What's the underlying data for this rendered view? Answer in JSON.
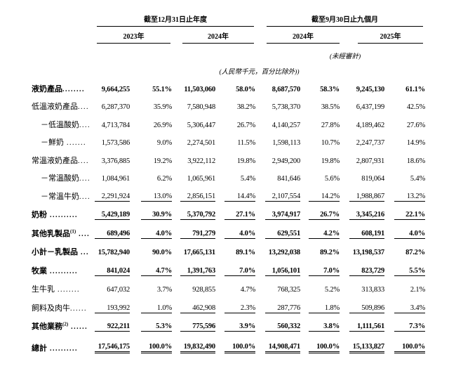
{
  "header": {
    "group1": {
      "title": "截至12月31日止年度",
      "years": [
        "2023年",
        "2024年"
      ]
    },
    "group2": {
      "title": "截至9月30日止九個月",
      "years": [
        "2024年",
        "2025年"
      ],
      "unaudited_note": "(未經審計)"
    },
    "unit_note": "(人民幣千元，百分比除外))"
  },
  "rows": [
    {
      "label": "液奶產品",
      "sup": "",
      "dots": "........",
      "indent": 0,
      "bold": true,
      "underline": "none",
      "values": [
        "9,664,255",
        "55.1%",
        "11,503,060",
        "58.0%",
        "8,687,570",
        "58.3%",
        "9,245,130",
        "61.1%"
      ]
    },
    {
      "label": "低溫液奶產品",
      "sup": "",
      "dots": "....",
      "indent": 0,
      "bold": false,
      "underline": "none",
      "values": [
        "6,287,370",
        "35.9%",
        "7,580,948",
        "38.2%",
        "5,738,370",
        "38.5%",
        "6,437,199",
        "42.5%"
      ]
    },
    {
      "label": "－低溫酸奶",
      "sup": "",
      "dots": "....",
      "indent": 1,
      "bold": false,
      "underline": "none",
      "values": [
        "4,713,784",
        "26.9%",
        "5,306,447",
        "26.7%",
        "4,140,257",
        "27.8%",
        "4,189,462",
        "27.6%"
      ]
    },
    {
      "label": "－鮮奶",
      "sup": "",
      "dots": " .......",
      "indent": 1,
      "bold": false,
      "underline": "none",
      "values": [
        "1,573,586",
        "9.0%",
        "2,274,501",
        "11.5%",
        "1,598,113",
        "10.7%",
        "2,247,737",
        "14.9%"
      ]
    },
    {
      "label": "常溫液奶產品",
      "sup": "",
      "dots": "....",
      "indent": 0,
      "bold": false,
      "underline": "none",
      "values": [
        "3,376,885",
        "19.2%",
        "3,922,112",
        "19.8%",
        "2,949,200",
        "19.8%",
        "2,807,931",
        "18.6%"
      ]
    },
    {
      "label": "－常溫酸奶",
      "sup": "",
      "dots": "....",
      "indent": 1,
      "bold": false,
      "underline": "none",
      "values": [
        "1,084,961",
        "6.2%",
        "1,065,961",
        "5.4%",
        "841,646",
        "5.6%",
        "819,064",
        "5.4%"
      ]
    },
    {
      "label": "－常溫牛奶",
      "sup": "",
      "dots": "....",
      "indent": 1,
      "bold": false,
      "underline": "single",
      "values": [
        "2,291,924",
        "13.0%",
        "2,856,151",
        "14.4%",
        "2,107,554",
        "14.2%",
        "1,988,867",
        "13.2%"
      ]
    },
    {
      "label": "奶粉",
      "sup": "",
      "dots": " ..........",
      "indent": 0,
      "bold": true,
      "underline": "single",
      "values": [
        "5,429,189",
        "30.9%",
        "5,370,792",
        "27.1%",
        "3,974,917",
        "26.7%",
        "3,345,216",
        "22.1%"
      ]
    },
    {
      "label": "其他乳製品",
      "sup": "(1)",
      "dots": " ....",
      "indent": 0,
      "bold": true,
      "underline": "single",
      "values": [
        "689,496",
        "4.0%",
        "791,279",
        "4.0%",
        "629,551",
        "4.2%",
        "608,191",
        "4.0%"
      ]
    },
    {
      "label": "小計－乳製品",
      "sup": "",
      "dots": " ...",
      "indent": 0,
      "bold": true,
      "underline": "none",
      "values": [
        "15,782,940",
        "90.0%",
        "17,665,131",
        "89.1%",
        "13,292,038",
        "89.2%",
        "13,198,537",
        "87.2%"
      ]
    },
    {
      "label": "牧業",
      "sup": "",
      "dots": " ..........",
      "indent": 0,
      "bold": true,
      "underline": "single",
      "values": [
        "841,024",
        "4.7%",
        "1,391,763",
        "7.0%",
        "1,056,101",
        "7.0%",
        "823,729",
        "5.5%"
      ]
    },
    {
      "label": "生牛乳",
      "sup": "",
      "dots": " ........",
      "indent": 0,
      "bold": false,
      "underline": "none",
      "values": [
        "647,032",
        "3.7%",
        "928,855",
        "4.7%",
        "768,325",
        "5.2%",
        "313,833",
        "2.1%"
      ]
    },
    {
      "label": "飼料及肉牛",
      "sup": "",
      "dots": "......",
      "indent": 0,
      "bold": false,
      "underline": "single",
      "values": [
        "193,992",
        "1.0%",
        "462,908",
        "2.3%",
        "287,776",
        "1.8%",
        "509,896",
        "3.4%"
      ]
    },
    {
      "label": "其他業務",
      "sup": "(2)",
      "dots": " ......",
      "indent": 0,
      "bold": true,
      "underline": "single",
      "values": [
        "922,211",
        "5.3%",
        "775,596",
        "3.9%",
        "560,332",
        "3.8%",
        "1,111,561",
        "7.3%"
      ]
    },
    {
      "label": "總計",
      "sup": "",
      "dots": " ..........",
      "indent": 0,
      "bold": true,
      "underline": "double",
      "values": [
        "17,546,175",
        "100.0%",
        "19,832,490",
        "100.0%",
        "14,908,471",
        "100.0%",
        "15,133,827",
        "100.0%"
      ]
    }
  ]
}
